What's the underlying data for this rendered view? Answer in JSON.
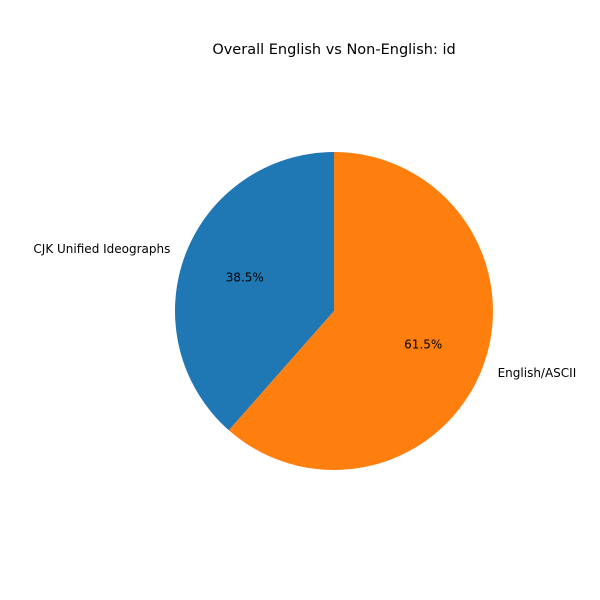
{
  "chart_data": {
    "type": "pie",
    "title": "Overall English vs Non-English: id",
    "categories": [
      "CJK Unified Ideographs",
      "English/ASCII"
    ],
    "values": [
      38.5,
      61.5
    ],
    "value_labels": [
      "38.5%",
      "61.5%"
    ],
    "colors": [
      "#1f77b4",
      "#ff7f0e"
    ],
    "start_angle_deg": 90,
    "direction": "counterclockwise",
    "legend": "none"
  }
}
